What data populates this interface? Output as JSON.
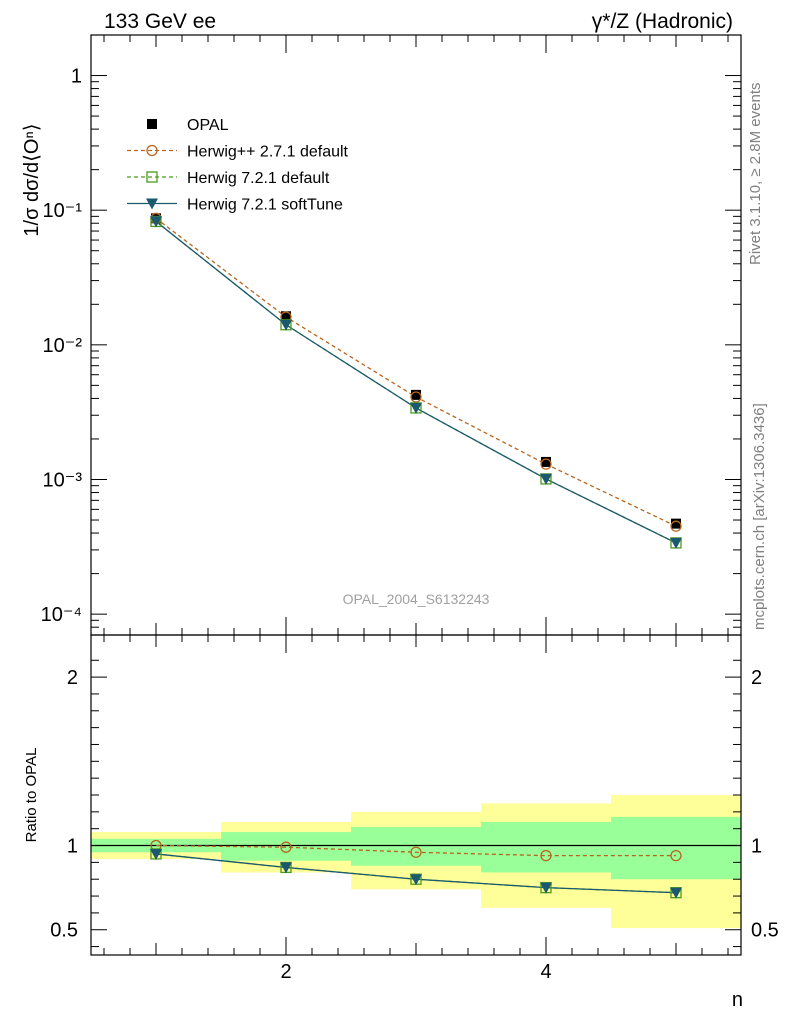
{
  "header": {
    "left": "133 GeV ee",
    "right": "γ*/Z (Hadronic)"
  },
  "side": {
    "rivet": "Rivet 3.1.10, ≥ 2.8M events",
    "mcplots": "mcplots.cern.ch [arXiv:1306.3436]"
  },
  "watermark": "OPAL_2004_S6132243",
  "chart_data": [
    {
      "type": "line",
      "panel": "main",
      "ylabel": "1/σ dσ/d⟨Oⁿ⟩",
      "ylog": true,
      "xlim": [
        0.5,
        5.5
      ],
      "ylim": [
        7e-05,
        2
      ],
      "ytick_labels": [
        "10⁻⁴",
        "10⁻³",
        "10⁻²",
        "10⁻¹",
        "1"
      ],
      "ytick_values": [
        0.0001,
        0.001,
        0.01,
        0.1,
        1
      ],
      "legend": "top-left",
      "x": [
        1,
        2,
        3,
        4,
        5
      ],
      "series": [
        {
          "name": "OPAL",
          "values": [
            0.087,
            0.0163,
            0.00425,
            0.00135,
            0.00047
          ],
          "style": "square-filled",
          "color": "#000000"
        },
        {
          "name": "Herwig++ 2.7.1 default",
          "values": [
            0.087,
            0.0161,
            0.0041,
            0.0013,
            0.00045
          ],
          "style": "circle-open-dashed",
          "color": "#b8651e"
        },
        {
          "name": "Herwig 7.2.1 default",
          "values": [
            0.0825,
            0.0141,
            0.0034,
            0.00101,
            0.000338
          ],
          "style": "square-open-dashed",
          "color": "#4c9a1c"
        },
        {
          "name": "Herwig 7.2.1 softTune",
          "values": [
            0.0825,
            0.0141,
            0.0034,
            0.00101,
            0.000338
          ],
          "style": "triangle-down-solid",
          "color": "#1b5a6e"
        }
      ]
    },
    {
      "type": "line",
      "panel": "ratio",
      "ylabel": "Ratio to OPAL",
      "xlabel": "n",
      "xlim": [
        0.5,
        5.5
      ],
      "ylim": [
        0.35,
        2.25
      ],
      "ytick_labels": [
        "0.5",
        "1",
        "2"
      ],
      "ytick_values": [
        0.5,
        1,
        2
      ],
      "xtick_labels": [
        "2",
        "4"
      ],
      "xtick_values": [
        2,
        4
      ],
      "bands": {
        "yellow": [
          [
            0.92,
            1.08
          ],
          [
            0.84,
            1.14
          ],
          [
            0.74,
            1.2
          ],
          [
            0.63,
            1.25
          ],
          [
            0.51,
            1.3
          ]
        ],
        "green": [
          [
            0.96,
            1.04
          ],
          [
            0.91,
            1.08
          ],
          [
            0.88,
            1.11
          ],
          [
            0.84,
            1.14
          ],
          [
            0.8,
            1.17
          ]
        ],
        "yellow_color": "#ffff99",
        "green_color": "#99ff99"
      },
      "x": [
        1,
        2,
        3,
        4,
        5
      ],
      "series": [
        {
          "name": "Herwig++ 2.7.1 default",
          "values": [
            1.0,
            0.99,
            0.96,
            0.94,
            0.94
          ],
          "style": "circle-open-dashed",
          "color": "#b8651e"
        },
        {
          "name": "Herwig 7.2.1 default",
          "values": [
            0.95,
            0.87,
            0.8,
            0.75,
            0.72
          ],
          "style": "square-open-dashed",
          "color": "#4c9a1c"
        },
        {
          "name": "Herwig 7.2.1 softTune",
          "values": [
            0.95,
            0.87,
            0.8,
            0.75,
            0.72
          ],
          "style": "triangle-down-solid",
          "color": "#1b5a6e"
        }
      ]
    }
  ]
}
